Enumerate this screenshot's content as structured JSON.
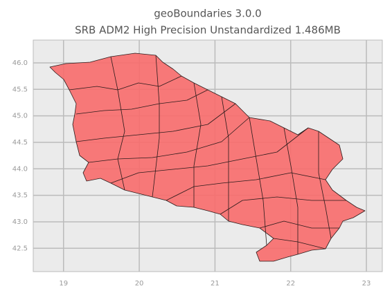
{
  "chart_data": {
    "type": "map",
    "title": "geoBoundaries 3.0.0",
    "subtitle": "SRB ADM2 High Precision Unstandardized 1.486MB",
    "xlim": [
      18.6,
      23.21
    ],
    "ylim": [
      42.06,
      46.43
    ],
    "xticks": [
      19,
      20,
      21,
      22,
      23
    ],
    "yticks": [
      {
        "value": 42.5,
        "label": "42.5"
      },
      {
        "value": 43.0,
        "label": "43.0"
      },
      {
        "value": 43.5,
        "label": "43.5"
      },
      {
        "value": 44.0,
        "label": "44.0"
      },
      {
        "value": 44.5,
        "label": "44.5"
      },
      {
        "value": 45.0,
        "label": "45.0"
      },
      {
        "value": 45.5,
        "label": "45.5"
      },
      {
        "value": 46.0,
        "label": "46.0"
      }
    ],
    "grid": true,
    "color": "#f86b6b"
  }
}
